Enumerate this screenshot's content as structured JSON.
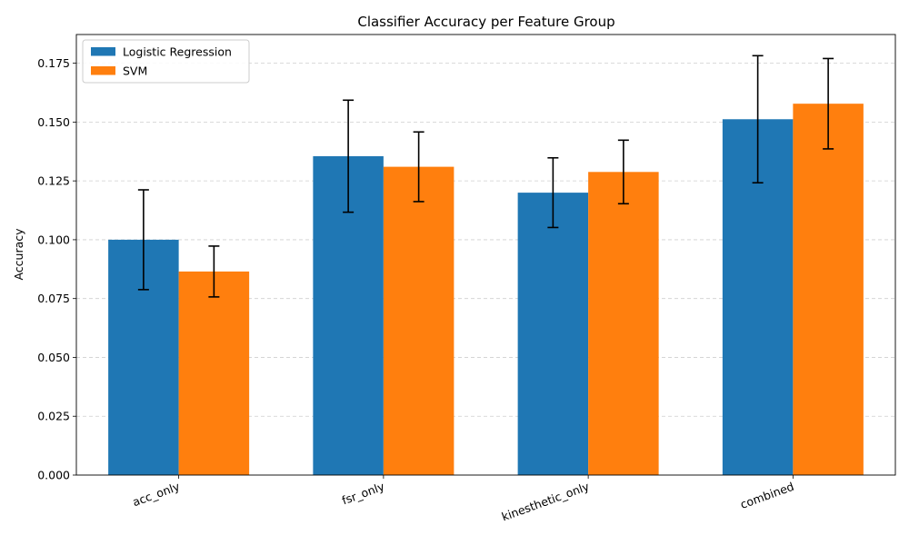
{
  "chart_data": {
    "type": "bar",
    "title": "Classifier Accuracy per Feature Group",
    "xlabel": "",
    "ylabel": "Accuracy",
    "categories": [
      "acc_only",
      "fsr_only",
      "kinesthetic_only",
      "combined"
    ],
    "series": [
      {
        "name": "Logistic Regression",
        "color": "#1f77b4",
        "values": [
          0.1,
          0.1355,
          0.12,
          0.1512
        ],
        "errors": [
          0.0212,
          0.0238,
          0.0148,
          0.027
        ]
      },
      {
        "name": "SVM",
        "color": "#ff7f0e",
        "values": [
          0.0865,
          0.131,
          0.1288,
          0.1578
        ],
        "errors": [
          0.0108,
          0.0148,
          0.0135,
          0.0192
        ]
      }
    ],
    "ylim": [
      0,
      0.1872
    ],
    "yticks": [
      "0.000",
      "0.025",
      "0.050",
      "0.075",
      "0.100",
      "0.125",
      "0.150",
      "0.175"
    ],
    "ytick_values": [
      0,
      0.025,
      0.05,
      0.075,
      0.1,
      0.125,
      0.15,
      0.175
    ],
    "grid": "y-dashed",
    "legend_position": "top-left"
  }
}
